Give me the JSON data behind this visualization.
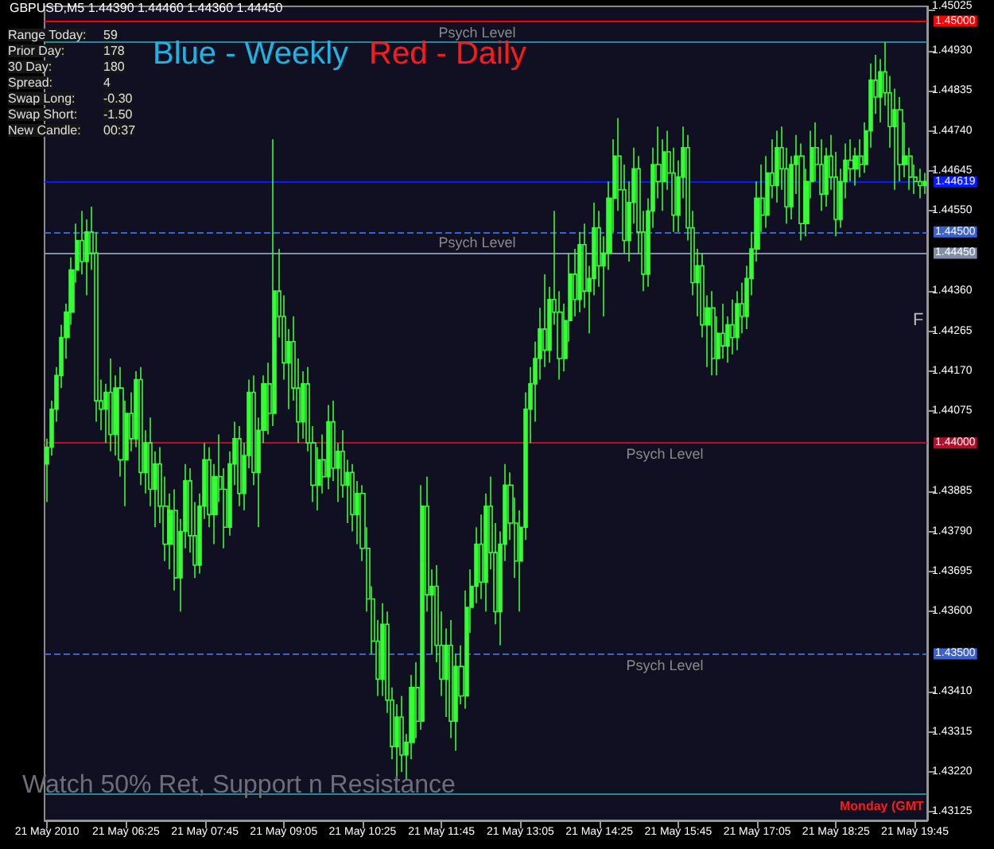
{
  "chart_data": {
    "type": "candlestick",
    "title": "GBPUSD,M5 1.44390 1.44460 1.44360 1.44450",
    "categories": [
      "21 May 2010",
      null,
      null,
      null,
      null,
      null,
      null,
      null,
      null,
      null,
      null,
      null,
      null,
      null,
      null,
      null,
      "21 May 06:25",
      null,
      null,
      null,
      null,
      null,
      null,
      null,
      null,
      null,
      null,
      null,
      null,
      null,
      null,
      null,
      "21 May 07:45",
      null,
      null,
      null,
      null,
      null,
      null,
      null,
      null,
      null,
      null,
      null,
      null,
      null,
      null,
      null,
      "21 May 09:05",
      null,
      null,
      null,
      null,
      null,
      null,
      null,
      null,
      null,
      null,
      null,
      null,
      null,
      null,
      null,
      "21 May 10:25",
      null,
      null,
      null,
      null,
      null,
      null,
      null,
      null,
      null,
      null,
      null,
      null,
      null,
      null,
      null,
      "21 May 11:45",
      null,
      null,
      null,
      null,
      null,
      null,
      null,
      null,
      null,
      null,
      null,
      null,
      null,
      null,
      null,
      "21 May 13:05",
      null,
      null,
      null,
      null,
      null,
      null,
      null,
      null,
      null,
      null,
      null,
      null,
      null,
      null,
      null,
      "21 May 14:25",
      null,
      null,
      null,
      null,
      null,
      null,
      null,
      null,
      null,
      null,
      null,
      null,
      null,
      null,
      null,
      "21 May 15:45",
      null,
      null,
      null,
      null,
      null,
      null,
      null,
      null,
      null,
      null,
      null,
      null,
      null,
      null,
      null,
      "21 May 17:05",
      null,
      null,
      null,
      null,
      null,
      null,
      null,
      null,
      null,
      null,
      null,
      null,
      null,
      null,
      null,
      "21 May 18:25",
      null,
      null,
      null,
      null,
      null,
      null,
      null,
      null,
      null,
      null,
      null,
      null,
      null,
      null,
      null,
      "21 May 19:45",
      null,
      null
    ],
    "series": [
      {
        "color": "#33ff33",
        "ohlc": [
          [
            1.4395,
            1.4401,
            1.4386,
            1.4399
          ],
          [
            1.4399,
            1.441,
            1.4397,
            1.4408
          ],
          [
            1.4408,
            1.4418,
            1.4405,
            1.4416
          ],
          [
            1.4416,
            1.4428,
            1.4413,
            1.4425
          ],
          [
            1.4425,
            1.4433,
            1.442,
            1.4431
          ],
          [
            1.4431,
            1.4444,
            1.4428,
            1.4441
          ],
          [
            1.4441,
            1.4452,
            1.4438,
            1.4448
          ],
          [
            1.4448,
            1.4455,
            1.444,
            1.4443
          ],
          [
            1.4443,
            1.4453,
            1.4435,
            1.445
          ],
          [
            1.445,
            1.4456,
            1.4441,
            1.4445
          ],
          [
            1.4445,
            1.445,
            1.4405,
            1.441
          ],
          [
            1.441,
            1.4415,
            1.4403,
            1.4408
          ],
          [
            1.4408,
            1.4414,
            1.44,
            1.4412
          ],
          [
            1.4412,
            1.442,
            1.4398,
            1.4402
          ],
          [
            1.4402,
            1.4416,
            1.4397,
            1.4413
          ],
          [
            1.4413,
            1.4418,
            1.4392,
            1.4396
          ],
          [
            1.4396,
            1.441,
            1.4385,
            1.4407
          ],
          [
            1.4407,
            1.4412,
            1.4398,
            1.4401
          ],
          [
            1.4401,
            1.4417,
            1.4399,
            1.4415
          ],
          [
            1.4415,
            1.4418,
            1.439,
            1.4393
          ],
          [
            1.4393,
            1.4403,
            1.4388,
            1.44
          ],
          [
            1.44,
            1.4406,
            1.4385,
            1.4389
          ],
          [
            1.4389,
            1.4398,
            1.438,
            1.4395
          ],
          [
            1.4395,
            1.4399,
            1.4381,
            1.4385
          ],
          [
            1.4385,
            1.4392,
            1.4372,
            1.4376
          ],
          [
            1.4376,
            1.4388,
            1.437,
            1.4384
          ],
          [
            1.4384,
            1.4389,
            1.4365,
            1.4368
          ],
          [
            1.4368,
            1.4382,
            1.436,
            1.4379
          ],
          [
            1.4379,
            1.4395,
            1.4375,
            1.4391
          ],
          [
            1.4391,
            1.4394,
            1.4374,
            1.4378
          ],
          [
            1.4378,
            1.4386,
            1.4368,
            1.4371
          ],
          [
            1.4371,
            1.4388,
            1.4369,
            1.4385
          ],
          [
            1.4385,
            1.44,
            1.4382,
            1.4396
          ],
          [
            1.4396,
            1.4399,
            1.438,
            1.4383
          ],
          [
            1.4383,
            1.4395,
            1.4376,
            1.4392
          ],
          [
            1.4392,
            1.4402,
            1.4386,
            1.4389
          ],
          [
            1.4389,
            1.4394,
            1.4375,
            1.438
          ],
          [
            1.438,
            1.4398,
            1.4378,
            1.4395
          ],
          [
            1.4395,
            1.4405,
            1.439,
            1.4401
          ],
          [
            1.4401,
            1.4404,
            1.4385,
            1.4388
          ],
          [
            1.4388,
            1.44,
            1.4384,
            1.4397
          ],
          [
            1.4397,
            1.4415,
            1.4394,
            1.4412
          ],
          [
            1.4412,
            1.4416,
            1.439,
            1.4393
          ],
          [
            1.4393,
            1.4406,
            1.438,
            1.4403
          ],
          [
            1.4403,
            1.4416,
            1.44,
            1.4414
          ],
          [
            1.4414,
            1.4419,
            1.4402,
            1.4407
          ],
          [
            1.4407,
            1.4472,
            1.4404,
            1.4436
          ],
          [
            1.4436,
            1.4446,
            1.4425,
            1.443
          ],
          [
            1.443,
            1.4435,
            1.4415,
            1.4419
          ],
          [
            1.4419,
            1.4427,
            1.4408,
            1.4424
          ],
          [
            1.4424,
            1.443,
            1.441,
            1.4413
          ],
          [
            1.4413,
            1.442,
            1.44,
            1.4405
          ],
          [
            1.4405,
            1.4417,
            1.4401,
            1.4414
          ],
          [
            1.4414,
            1.4418,
            1.4398,
            1.44
          ],
          [
            1.44,
            1.4404,
            1.4386,
            1.439
          ],
          [
            1.439,
            1.4399,
            1.4384,
            1.4396
          ],
          [
            1.4396,
            1.4402,
            1.4388,
            1.4392
          ],
          [
            1.4392,
            1.4409,
            1.4389,
            1.4405
          ],
          [
            1.4405,
            1.441,
            1.4391,
            1.4394
          ],
          [
            1.4394,
            1.44,
            1.4386,
            1.4398
          ],
          [
            1.4398,
            1.4403,
            1.4387,
            1.439
          ],
          [
            1.439,
            1.4396,
            1.4381,
            1.4393
          ],
          [
            1.4393,
            1.4395,
            1.4379,
            1.4383
          ],
          [
            1.4383,
            1.4391,
            1.4376,
            1.4388
          ],
          [
            1.4388,
            1.439,
            1.4372,
            1.4375
          ],
          [
            1.4375,
            1.438,
            1.436,
            1.4363
          ],
          [
            1.4363,
            1.4366,
            1.435,
            1.4353
          ],
          [
            1.4353,
            1.4358,
            1.434,
            1.4344
          ],
          [
            1.4344,
            1.4362,
            1.434,
            1.4357
          ],
          [
            1.4357,
            1.436,
            1.4336,
            1.4339
          ],
          [
            1.4339,
            1.4342,
            1.4325,
            1.4328
          ],
          [
            1.4328,
            1.4338,
            1.432,
            1.4335
          ],
          [
            1.4335,
            1.434,
            1.4322,
            1.4326
          ],
          [
            1.4326,
            1.4331,
            1.432,
            1.4329
          ],
          [
            1.4329,
            1.4345,
            1.4325,
            1.4342
          ],
          [
            1.4342,
            1.4348,
            1.433,
            1.4334
          ],
          [
            1.4334,
            1.439,
            1.4332,
            1.4385
          ],
          [
            1.4385,
            1.4392,
            1.436,
            1.4364
          ],
          [
            1.4364,
            1.437,
            1.435,
            1.4366
          ],
          [
            1.4366,
            1.4371,
            1.4348,
            1.4352
          ],
          [
            1.4352,
            1.436,
            1.434,
            1.4344
          ],
          [
            1.4344,
            1.4356,
            1.4335,
            1.4352
          ],
          [
            1.4352,
            1.4358,
            1.433,
            1.4334
          ],
          [
            1.4334,
            1.435,
            1.4327,
            1.4347
          ],
          [
            1.4347,
            1.4352,
            1.4338,
            1.434
          ],
          [
            1.434,
            1.4365,
            1.4337,
            1.4361
          ],
          [
            1.4361,
            1.437,
            1.4355,
            1.4366
          ],
          [
            1.4366,
            1.438,
            1.4362,
            1.4376
          ],
          [
            1.4376,
            1.4383,
            1.4363,
            1.4367
          ],
          [
            1.4367,
            1.4388,
            1.436,
            1.4385
          ],
          [
            1.4385,
            1.4392,
            1.437,
            1.4374
          ],
          [
            1.4374,
            1.4381,
            1.4357,
            1.436
          ],
          [
            1.436,
            1.4379,
            1.4352,
            1.4376
          ],
          [
            1.4376,
            1.4395,
            1.4372,
            1.439
          ],
          [
            1.439,
            1.4393,
            1.4377,
            1.4381
          ],
          [
            1.4381,
            1.4387,
            1.4368,
            1.4372
          ],
          [
            1.4372,
            1.4384,
            1.436,
            1.438
          ],
          [
            1.438,
            1.4412,
            1.4377,
            1.4408
          ],
          [
            1.4408,
            1.4418,
            1.44,
            1.4414
          ],
          [
            1.4414,
            1.4424,
            1.4405,
            1.442
          ],
          [
            1.442,
            1.4432,
            1.4415,
            1.4427
          ],
          [
            1.4427,
            1.444,
            1.4418,
            1.4422
          ],
          [
            1.4422,
            1.4437,
            1.4419,
            1.4434
          ],
          [
            1.4434,
            1.4455,
            1.4428,
            1.4431
          ],
          [
            1.4431,
            1.4436,
            1.4415,
            1.442
          ],
          [
            1.442,
            1.4433,
            1.4417,
            1.4429
          ],
          [
            1.4429,
            1.4445,
            1.4424,
            1.444
          ],
          [
            1.444,
            1.4446,
            1.443,
            1.4434
          ],
          [
            1.4434,
            1.445,
            1.4431,
            1.4447
          ],
          [
            1.4447,
            1.4452,
            1.4432,
            1.4436
          ],
          [
            1.4436,
            1.4442,
            1.4426,
            1.4439
          ],
          [
            1.4439,
            1.4457,
            1.4435,
            1.4451
          ],
          [
            1.4451,
            1.4455,
            1.4437,
            1.4442
          ],
          [
            1.4442,
            1.4449,
            1.443,
            1.4445
          ],
          [
            1.4445,
            1.4462,
            1.4441,
            1.4458
          ],
          [
            1.4458,
            1.4472,
            1.445,
            1.4468
          ],
          [
            1.4468,
            1.4477,
            1.4455,
            1.446
          ],
          [
            1.446,
            1.4466,
            1.4445,
            1.4448
          ],
          [
            1.4448,
            1.4462,
            1.4443,
            1.4457
          ],
          [
            1.4457,
            1.447,
            1.4452,
            1.4465
          ],
          [
            1.4465,
            1.4468,
            1.4445,
            1.445
          ],
          [
            1.445,
            1.4455,
            1.4436,
            1.444
          ],
          [
            1.444,
            1.4458,
            1.4437,
            1.4455
          ],
          [
            1.4455,
            1.447,
            1.4451,
            1.4466
          ],
          [
            1.4466,
            1.4475,
            1.4458,
            1.4462
          ],
          [
            1.4462,
            1.4472,
            1.4455,
            1.4469
          ],
          [
            1.4469,
            1.4474,
            1.446,
            1.4464
          ],
          [
            1.4464,
            1.447,
            1.445,
            1.4454
          ],
          [
            1.4454,
            1.4467,
            1.445,
            1.4463
          ],
          [
            1.4463,
            1.4475,
            1.4458,
            1.447
          ],
          [
            1.447,
            1.4473,
            1.4448,
            1.4451
          ],
          [
            1.4451,
            1.4455,
            1.4435,
            1.4438
          ],
          [
            1.4438,
            1.4446,
            1.443,
            1.4442
          ],
          [
            1.4442,
            1.4445,
            1.4425,
            1.4428
          ],
          [
            1.4428,
            1.4435,
            1.4418,
            1.4432
          ],
          [
            1.4432,
            1.4436,
            1.4416,
            1.442
          ],
          [
            1.442,
            1.443,
            1.4416,
            1.4426
          ],
          [
            1.4426,
            1.4433,
            1.442,
            1.4423
          ],
          [
            1.4423,
            1.443,
            1.4419,
            1.4428
          ],
          [
            1.4428,
            1.4434,
            1.4421,
            1.4425
          ],
          [
            1.4425,
            1.4436,
            1.4422,
            1.4433
          ],
          [
            1.4433,
            1.4438,
            1.4426,
            1.443
          ],
          [
            1.443,
            1.4442,
            1.4427,
            1.4439
          ],
          [
            1.4439,
            1.445,
            1.4435,
            1.4446
          ],
          [
            1.4446,
            1.4462,
            1.4443,
            1.4458
          ],
          [
            1.4458,
            1.4466,
            1.445,
            1.4454
          ],
          [
            1.4454,
            1.4468,
            1.4451,
            1.4464
          ],
          [
            1.4464,
            1.4472,
            1.4458,
            1.4461
          ],
          [
            1.4461,
            1.4474,
            1.4457,
            1.447
          ],
          [
            1.447,
            1.4475,
            1.446,
            1.4465
          ],
          [
            1.4465,
            1.447,
            1.4452,
            1.4456
          ],
          [
            1.4456,
            1.4468,
            1.4453,
            1.4466
          ],
          [
            1.4466,
            1.4473,
            1.4459,
            1.4468
          ],
          [
            1.4468,
            1.4471,
            1.4448,
            1.4452
          ],
          [
            1.4452,
            1.4465,
            1.4449,
            1.4462
          ],
          [
            1.4462,
            1.4474,
            1.4458,
            1.447
          ],
          [
            1.447,
            1.4476,
            1.4462,
            1.4466
          ],
          [
            1.4466,
            1.4472,
            1.4455,
            1.4459
          ],
          [
            1.4459,
            1.447,
            1.4456,
            1.4468
          ],
          [
            1.4468,
            1.4473,
            1.446,
            1.4463
          ],
          [
            1.4463,
            1.4469,
            1.4449,
            1.4453
          ],
          [
            1.4453,
            1.4465,
            1.4451,
            1.4462
          ],
          [
            1.4462,
            1.4471,
            1.4458,
            1.4467
          ],
          [
            1.4467,
            1.4472,
            1.4462,
            1.4465
          ],
          [
            1.4465,
            1.447,
            1.4461,
            1.4468
          ],
          [
            1.4468,
            1.4472,
            1.4463,
            1.4466
          ],
          [
            1.4466,
            1.4476,
            1.4464,
            1.4474
          ],
          [
            1.4474,
            1.449,
            1.447,
            1.4486
          ],
          [
            1.4486,
            1.4492,
            1.4478,
            1.4482
          ],
          [
            1.4482,
            1.4491,
            1.4476,
            1.4488
          ],
          [
            1.4488,
            1.4495,
            1.448,
            1.4483
          ],
          [
            1.4483,
            1.4487,
            1.447,
            1.4475
          ],
          [
            1.4475,
            1.4484,
            1.446,
            1.4479
          ],
          [
            1.4479,
            1.4482,
            1.4462,
            1.4466
          ],
          [
            1.4466,
            1.4476,
            1.4463,
            1.4468
          ],
          [
            1.4468,
            1.447,
            1.446,
            1.4463
          ],
          [
            1.4463,
            1.4466,
            1.4459,
            1.4462
          ],
          [
            1.4462,
            1.4465,
            1.4458,
            1.4461
          ],
          [
            1.4461,
            1.4464,
            1.4459,
            1.4462
          ]
        ]
      }
    ],
    "ylim": [
      1.43105,
      1.45035
    ],
    "yticks": [
      {
        "value": 1.45025,
        "label": "1.45025"
      },
      {
        "value": 1.4493,
        "label": "1.44930"
      },
      {
        "value": 1.44835,
        "label": "1.44835"
      },
      {
        "value": 1.4474,
        "label": "1.44740"
      },
      {
        "value": 1.44645,
        "label": "1.44645"
      },
      {
        "value": 1.4455,
        "label": "1.44550"
      },
      {
        "value": 1.4436,
        "label": "1.44360"
      },
      {
        "value": 1.44265,
        "label": "1.44265"
      },
      {
        "value": 1.4417,
        "label": "1.44170"
      },
      {
        "value": 1.44075,
        "label": "1.44075"
      },
      {
        "value": 1.43885,
        "label": "1.43885"
      },
      {
        "value": 1.4379,
        "label": "1.43790"
      },
      {
        "value": 1.43695,
        "label": "1.43695"
      },
      {
        "value": 1.436,
        "label": "1.43600"
      },
      {
        "value": 1.4341,
        "label": "1.43410"
      },
      {
        "value": 1.43315,
        "label": "1.43315"
      },
      {
        "value": 1.4322,
        "label": "1.43220"
      },
      {
        "value": 1.43125,
        "label": "1.43125"
      }
    ],
    "ref_lines": [
      {
        "axis": "y",
        "value": 1.4495,
        "label": null,
        "color": "#1f8a9a",
        "line_style": "solid"
      },
      {
        "axis": "y",
        "value": 1.45,
        "label": "1.45000",
        "color": "#ff0000",
        "line_style": "solid"
      },
      {
        "axis": "y",
        "value": 1.44619,
        "label": "1.44619",
        "color": "#0a1aff",
        "line_style": "solid"
      },
      {
        "axis": "y",
        "value": 1.445,
        "label": "1.44500",
        "color": "#3a62d0",
        "line_style": "dashed"
      },
      {
        "axis": "y",
        "value": 1.4445,
        "label": "1.44450",
        "color": "#7f8fa8",
        "line_style": "solid"
      },
      {
        "axis": "y",
        "value": 1.44,
        "label": "1.44000",
        "color": "#b0102a",
        "line_style": "solid"
      },
      {
        "axis": "y",
        "value": 1.435,
        "label": "1.43500",
        "color": "#3a62d0",
        "line_style": "dashed"
      },
      {
        "axis": "y",
        "value": 1.4317,
        "label": null,
        "color": "#1f8a9a",
        "line_style": "solid"
      }
    ],
    "annotations": [
      "Blue - Weekly",
      "Red - Daily",
      "Range Today: 59",
      "Prior Day: 178",
      "30 Day: 180",
      "Spread: 4",
      "Swap Long: -0.30",
      "Swap Short: -1.50",
      "New Candle: 00:37",
      "Watch 50% Ret, Support n Resistance",
      "Monday (GMT",
      "F",
      "Psych Level",
      "Psych Level",
      "Psych Level",
      "Psych Level"
    ]
  }
}
